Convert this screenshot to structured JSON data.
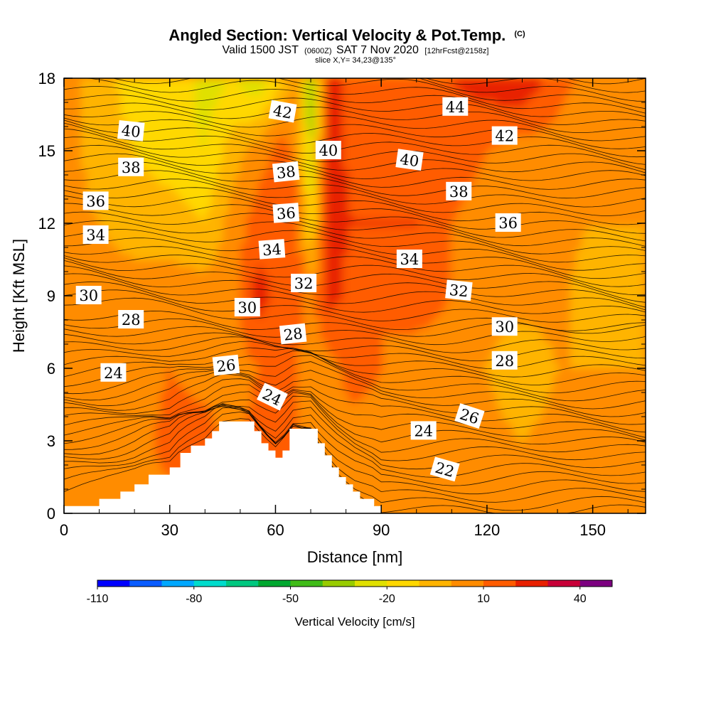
{
  "title": {
    "main": "Angled Section: Vertical Velocity & Pot.Temp.",
    "main_suffix": "(C)",
    "valid_prefix": "Valid 1500 JST",
    "valid_zulu": "(0600Z)",
    "valid_date": "SAT 7 Nov 2020",
    "valid_fcst": "[12hrFcst@2158z]",
    "slice": "slice X,Y= 34,23@135°"
  },
  "chart_data": {
    "type": "heatmap",
    "xlabel": "Distance [nm]",
    "ylabel": "Height [Kft MSL]",
    "xlim": [
      0,
      165
    ],
    "ylim": [
      0,
      18
    ],
    "x_ticks": [
      "0",
      "30",
      "60",
      "90",
      "120",
      "150"
    ],
    "y_ticks": [
      "0",
      "3",
      "6",
      "9",
      "12",
      "15",
      "18"
    ],
    "colorbar": {
      "label": "Vertical Velocity [cm/s]",
      "tick_labels": [
        "-110",
        "-80",
        "-50",
        "-20",
        "10",
        "40"
      ],
      "tick_values": [
        -110,
        -80,
        -50,
        -20,
        10,
        40
      ],
      "range": [
        -110,
        50
      ],
      "bin_width": 10,
      "colors": [
        "#0000ff",
        "#0a5cff",
        "#00a8ff",
        "#00dccc",
        "#00c880",
        "#00a830",
        "#40bc18",
        "#98cc00",
        "#e0e000",
        "#ffd800",
        "#ffb400",
        "#ff8c00",
        "#ff5c00",
        "#e82000",
        "#c80038",
        "#7c0080"
      ]
    },
    "velocity_field": {
      "x_nodes": [
        0,
        10,
        20,
        30,
        40,
        48,
        55,
        62,
        66,
        70,
        75,
        82,
        90,
        100,
        110,
        120,
        130,
        140,
        150,
        165
      ],
      "z_nodes": [
        0,
        3,
        6,
        9,
        12,
        15,
        18
      ],
      "values_cm_s": [
        [
          5,
          5,
          5,
          5,
          5,
          5,
          8,
          8,
          8,
          8,
          8,
          5,
          0,
          5,
          10,
          5,
          0,
          5,
          10,
          0
        ],
        [
          5,
          0,
          5,
          15,
          15,
          5,
          15,
          15,
          10,
          5,
          5,
          5,
          5,
          0,
          5,
          5,
          0,
          5,
          5,
          0
        ],
        [
          5,
          5,
          0,
          10,
          5,
          5,
          10,
          15,
          10,
          5,
          5,
          15,
          10,
          5,
          5,
          0,
          -10,
          0,
          0,
          0
        ],
        [
          5,
          5,
          5,
          5,
          5,
          5,
          25,
          15,
          15,
          5,
          25,
          15,
          10,
          15,
          10,
          5,
          5,
          5,
          -10,
          0
        ],
        [
          5,
          0,
          -5,
          -5,
          -10,
          5,
          15,
          15,
          15,
          -15,
          25,
          20,
          20,
          20,
          10,
          5,
          5,
          5,
          0,
          0
        ],
        [
          5,
          -5,
          -10,
          -15,
          -20,
          -5,
          5,
          15,
          5,
          -30,
          30,
          15,
          15,
          15,
          15,
          10,
          5,
          5,
          0,
          0
        ],
        [
          5,
          -5,
          -15,
          -10,
          -25,
          -20,
          -30,
          -10,
          5,
          -40,
          25,
          15,
          10,
          15,
          20,
          25,
          30,
          15,
          5,
          0
        ]
      ]
    },
    "terrain": {
      "note": "Terrain mask (Kft MSL) along the section; blank area below the surface",
      "x": [
        0,
        10,
        16,
        20,
        24,
        30,
        33,
        36,
        40,
        42,
        44,
        46,
        48,
        50,
        52,
        54,
        56,
        58,
        60,
        62,
        64,
        66,
        68,
        70,
        72,
        74,
        76,
        78,
        80,
        82,
        84,
        86,
        88,
        90,
        165
      ],
      "z": [
        0.3,
        0.6,
        0.9,
        1.2,
        1.6,
        1.9,
        2.5,
        2.8,
        3.1,
        3.4,
        3.8,
        3.8,
        3.8,
        3.8,
        3.8,
        3.4,
        2.9,
        2.6,
        2.3,
        2.6,
        3.5,
        3.5,
        3.5,
        3.5,
        2.9,
        2.4,
        1.9,
        1.5,
        1.2,
        0.9,
        0.6,
        0.6,
        0.3,
        0.0,
        0.0
      ]
    },
    "theta_contour_labels": [
      {
        "text": "44",
        "x": 111,
        "z": 16.8
      },
      {
        "text": "42",
        "x": 62,
        "z": 16.6,
        "angle": 10
      },
      {
        "text": "42",
        "x": 125,
        "z": 15.6
      },
      {
        "text": "40",
        "x": 19,
        "z": 15.8,
        "angle": 6
      },
      {
        "text": "40",
        "x": 75,
        "z": 15.0
      },
      {
        "text": "40",
        "x": 98,
        "z": 14.6,
        "angle": 8
      },
      {
        "text": "38",
        "x": 19,
        "z": 14.3
      },
      {
        "text": "38",
        "x": 63,
        "z": 14.1,
        "angle": -6
      },
      {
        "text": "38",
        "x": 112,
        "z": 13.3
      },
      {
        "text": "36",
        "x": 9,
        "z": 12.9
      },
      {
        "text": "36",
        "x": 63,
        "z": 12.4,
        "angle": -4
      },
      {
        "text": "36",
        "x": 126,
        "z": 12.0
      },
      {
        "text": "34",
        "x": 9,
        "z": 11.5
      },
      {
        "text": "34",
        "x": 59,
        "z": 10.9,
        "angle": -4
      },
      {
        "text": "34",
        "x": 98,
        "z": 10.5
      },
      {
        "text": "32",
        "x": 68,
        "z": 9.5
      },
      {
        "text": "32",
        "x": 112,
        "z": 9.2,
        "angle": 6
      },
      {
        "text": "30",
        "x": 7,
        "z": 9.0
      },
      {
        "text": "30",
        "x": 52,
        "z": 8.5
      },
      {
        "text": "30",
        "x": 125,
        "z": 7.7
      },
      {
        "text": "28",
        "x": 19,
        "z": 8.0
      },
      {
        "text": "28",
        "x": 65,
        "z": 7.4,
        "angle": -6
      },
      {
        "text": "28",
        "x": 125,
        "z": 6.3
      },
      {
        "text": "26",
        "x": 46,
        "z": 6.1,
        "angle": -6
      },
      {
        "text": "26",
        "x": 115,
        "z": 4.0,
        "angle": 18
      },
      {
        "text": "24",
        "x": 14,
        "z": 5.8
      },
      {
        "text": "24",
        "x": 59,
        "z": 4.8,
        "angle": 26
      },
      {
        "text": "24",
        "x": 102,
        "z": 3.4
      },
      {
        "text": "22",
        "x": 108,
        "z": 1.8,
        "angle": 16
      }
    ]
  }
}
